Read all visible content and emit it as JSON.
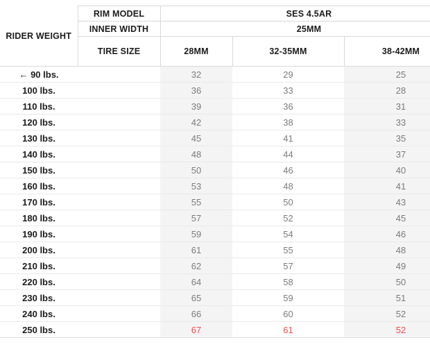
{
  "header": {
    "rim_model_label": "RIM MODEL",
    "rim_model_value": "SES 4.5AR",
    "inner_width_label": "INNER WIDTH",
    "inner_width_value": "25MM",
    "rider_weight_label": "RIDER WEIGHT",
    "tire_size_label": "TIRE SIZE",
    "tire_size_columns": [
      "28MM",
      "32-35MM",
      "38-42MM"
    ]
  },
  "icons": {
    "left_arrow": "←"
  },
  "colors": {
    "header_text": "#1b1b1d",
    "value_text": "#7b7b7f",
    "highlight_red": "#f8484c",
    "shaded_column_bg": "#f4f4f5",
    "border": "#d8d8da"
  },
  "chart_data": {
    "type": "table",
    "title": "SES 4.5AR tire pressure by rider weight",
    "columns": [
      "RIDER WEIGHT",
      "28MM",
      "32-35MM",
      "38-42MM"
    ],
    "rim_model": "SES 4.5AR",
    "inner_width": "25MM",
    "rows": [
      {
        "weight": "90 lbs.",
        "arrow": true,
        "psi": [
          32,
          29,
          25
        ],
        "highlight": false
      },
      {
        "weight": "100 lbs.",
        "arrow": false,
        "psi": [
          36,
          33,
          28
        ],
        "highlight": false
      },
      {
        "weight": "110 lbs.",
        "arrow": false,
        "psi": [
          39,
          36,
          31
        ],
        "highlight": false
      },
      {
        "weight": "120 lbs.",
        "arrow": false,
        "psi": [
          42,
          38,
          33
        ],
        "highlight": false
      },
      {
        "weight": "130 lbs.",
        "arrow": false,
        "psi": [
          45,
          41,
          35
        ],
        "highlight": false
      },
      {
        "weight": "140 lbs.",
        "arrow": false,
        "psi": [
          48,
          44,
          37
        ],
        "highlight": false
      },
      {
        "weight": "150 lbs.",
        "arrow": false,
        "psi": [
          50,
          46,
          40
        ],
        "highlight": false
      },
      {
        "weight": "160 lbs.",
        "arrow": false,
        "psi": [
          53,
          48,
          41
        ],
        "highlight": false
      },
      {
        "weight": "170 lbs.",
        "arrow": false,
        "psi": [
          55,
          50,
          43
        ],
        "highlight": false
      },
      {
        "weight": "180 lbs.",
        "arrow": false,
        "psi": [
          57,
          52,
          45
        ],
        "highlight": false
      },
      {
        "weight": "190 lbs.",
        "arrow": false,
        "psi": [
          59,
          54,
          46
        ],
        "highlight": false
      },
      {
        "weight": "200 lbs.",
        "arrow": false,
        "psi": [
          61,
          55,
          48
        ],
        "highlight": false
      },
      {
        "weight": "210 lbs.",
        "arrow": false,
        "psi": [
          62,
          57,
          49
        ],
        "highlight": false
      },
      {
        "weight": "220 lbs.",
        "arrow": false,
        "psi": [
          64,
          58,
          50
        ],
        "highlight": false
      },
      {
        "weight": "230 lbs.",
        "arrow": false,
        "psi": [
          65,
          59,
          51
        ],
        "highlight": false
      },
      {
        "weight": "240 lbs.",
        "arrow": false,
        "psi": [
          66,
          60,
          52
        ],
        "highlight": false
      },
      {
        "weight": "250 lbs.",
        "arrow": false,
        "psi": [
          67,
          61,
          52
        ],
        "highlight": true
      }
    ]
  }
}
